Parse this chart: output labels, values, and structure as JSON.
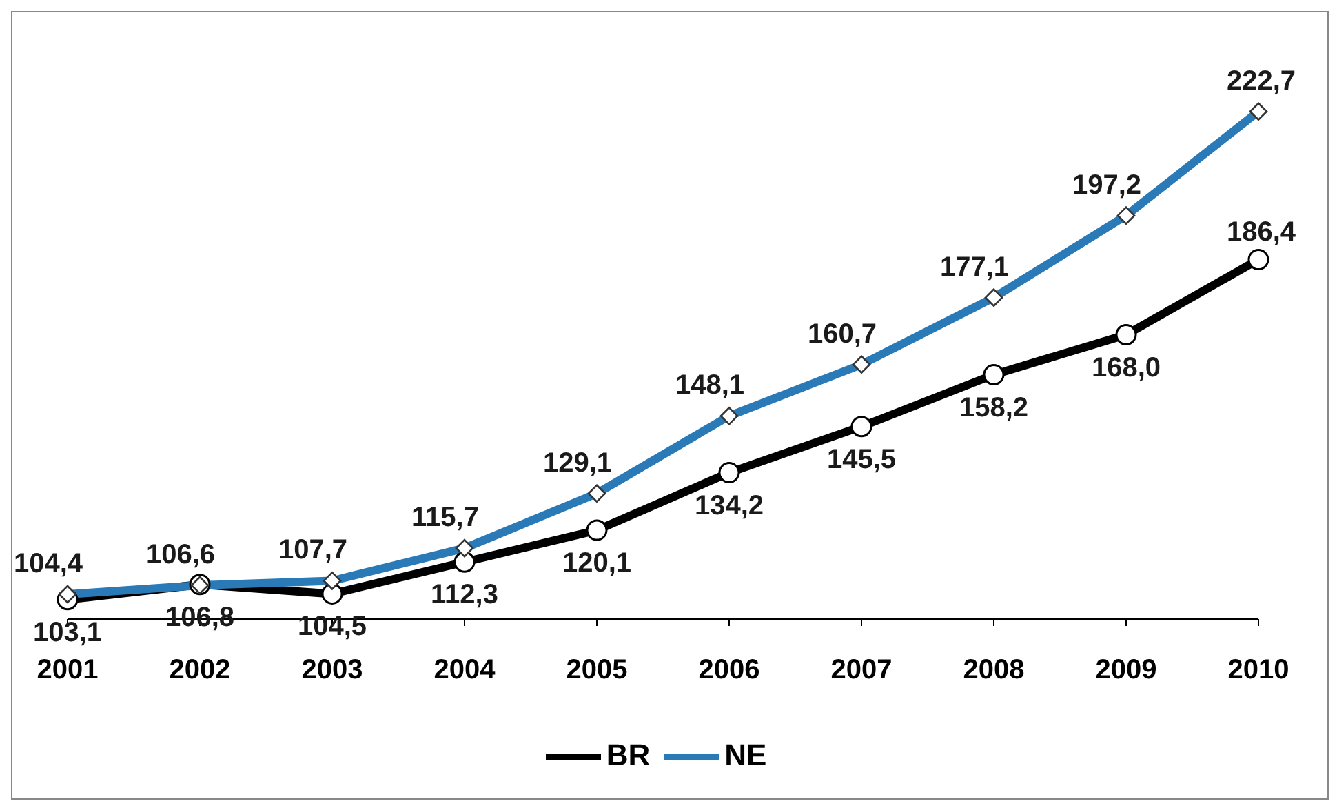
{
  "chart_data": {
    "type": "line",
    "categories": [
      "2001",
      "2002",
      "2003",
      "2004",
      "2005",
      "2006",
      "2007",
      "2008",
      "2009",
      "2010"
    ],
    "series": [
      {
        "name": "BR",
        "color": "#000000",
        "marker": "circle",
        "values": [
          103.1,
          106.8,
          104.5,
          112.3,
          120.1,
          134.2,
          145.5,
          158.2,
          168.0,
          186.4
        ],
        "value_labels": [
          "103,1",
          "106,8",
          "104,5",
          "112,3",
          "120,1",
          "134,2",
          "145,5",
          "158,2",
          "168,0",
          "186,4"
        ]
      },
      {
        "name": "NE",
        "color": "#2a7ab8",
        "marker": "diamond",
        "values": [
          104.4,
          106.6,
          107.7,
          115.7,
          129.1,
          148.1,
          160.7,
          177.1,
          197.2,
          222.7
        ],
        "value_labels": [
          "104,4",
          "106,6",
          "107,7",
          "115,7",
          "129,1",
          "148,1",
          "160,7",
          "177,1",
          "197,2",
          "222,7"
        ]
      }
    ],
    "grid": false,
    "legend": "bottom",
    "line_style": "solid"
  }
}
